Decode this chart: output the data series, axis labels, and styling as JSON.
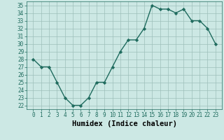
{
  "title": "",
  "xlabel": "Humidex (Indice chaleur)",
  "x": [
    0,
    1,
    2,
    3,
    4,
    5,
    6,
    7,
    8,
    9,
    10,
    11,
    12,
    13,
    14,
    15,
    16,
    17,
    18,
    19,
    20,
    21,
    22,
    23
  ],
  "y": [
    28,
    27,
    27,
    25,
    23,
    22,
    22,
    23,
    25,
    25,
    27,
    29,
    30.5,
    30.5,
    32,
    35,
    34.5,
    34.5,
    34,
    34.5,
    33,
    33,
    32,
    30
  ],
  "line_color": "#1f6b5e",
  "marker": "D",
  "marker_size": 2.2,
  "bg_color": "#cce8e4",
  "grid_color": "#9dbfba",
  "ylim": [
    21.5,
    35.5
  ],
  "yticks": [
    22,
    23,
    24,
    25,
    26,
    27,
    28,
    29,
    30,
    31,
    32,
    33,
    34,
    35
  ],
  "xticks": [
    0,
    1,
    2,
    3,
    4,
    5,
    6,
    7,
    8,
    9,
    10,
    11,
    12,
    13,
    14,
    15,
    16,
    17,
    18,
    19,
    20,
    21,
    22,
    23
  ],
  "tick_label_fontsize": 5.5,
  "xlabel_fontsize": 7.5,
  "linewidth": 1.0
}
